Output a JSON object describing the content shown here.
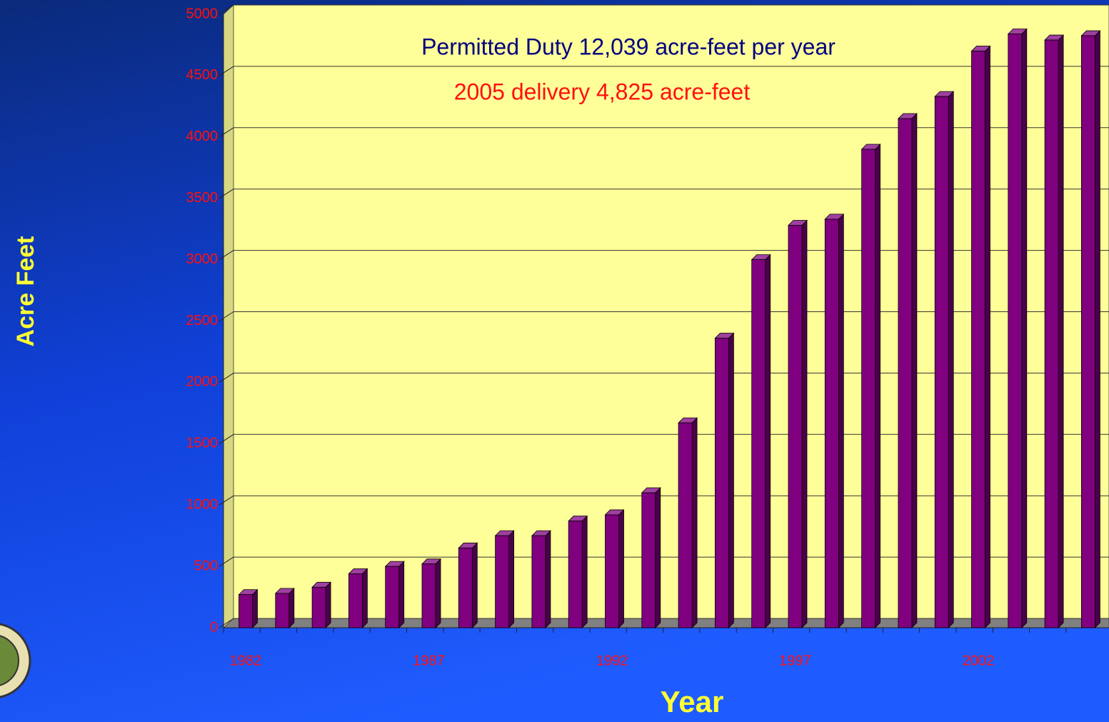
{
  "chart_data": {
    "type": "bar",
    "annotations": [
      "Permitted Duty 12,039 acre-feet per year",
      "2005 delivery 4,825 acre-feet"
    ],
    "y_label": "Acre Feet",
    "x_label": "Year",
    "categories": [
      "1982",
      null,
      null,
      null,
      null,
      "1987",
      null,
      null,
      null,
      null,
      "1992",
      null,
      null,
      null,
      null,
      "1997",
      null,
      null,
      null,
      null,
      "2002",
      null,
      null,
      null
    ],
    "values": [
      270,
      280,
      330,
      440,
      500,
      520,
      650,
      750,
      750,
      870,
      920,
      1100,
      1670,
      2360,
      3000,
      3280,
      3330,
      3900,
      4150,
      4330,
      4700,
      4840,
      4790,
      4825
    ],
    "color": "#800080",
    "ylim": [
      0,
      5000
    ],
    "yticks": [
      0,
      500,
      1000,
      1500,
      2000,
      2500,
      3000,
      3500,
      4000,
      4500,
      5000
    ],
    "grid": true
  }
}
